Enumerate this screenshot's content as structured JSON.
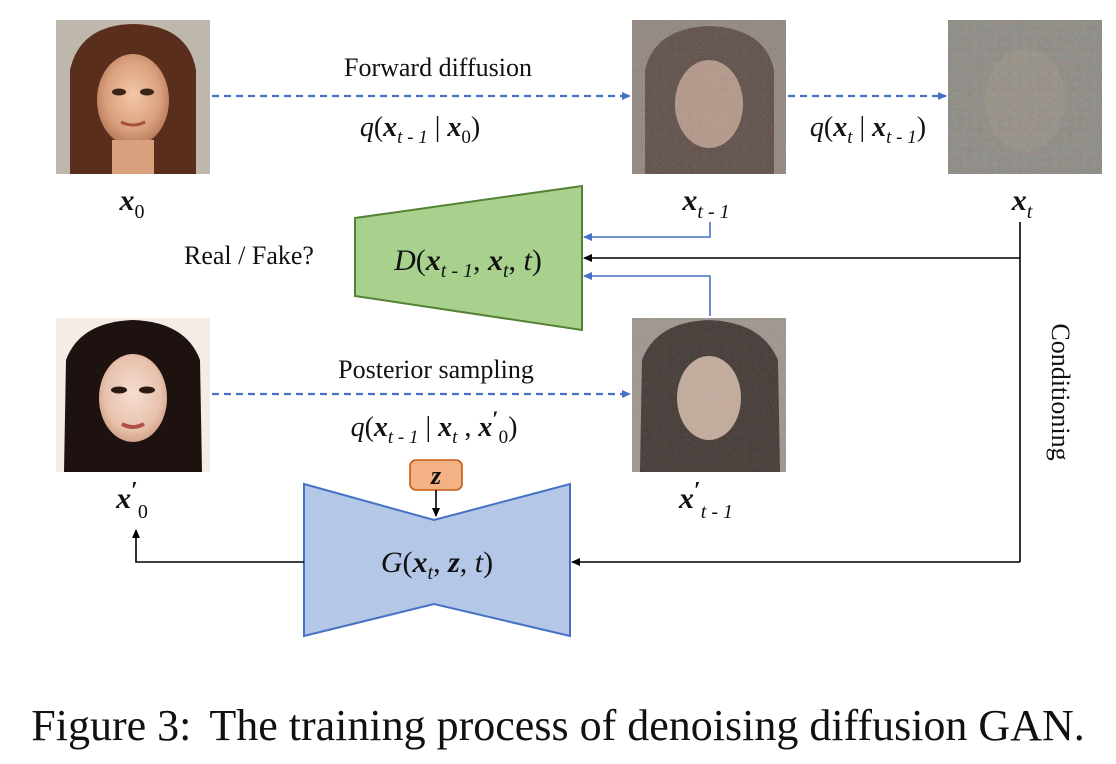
{
  "labels": {
    "forward_diffusion": "Forward diffusion",
    "posterior_sampling": "Posterior sampling",
    "real_fake": "Real / Fake?",
    "conditioning": "Conditioning"
  },
  "math": {
    "x": "x",
    "z": "z",
    "q": "q",
    "D": "D",
    "G": "G",
    "t": "t",
    "sub_0": "0",
    "sub_t": "t",
    "sub_t_minus_1": "t - 1",
    "prime": "′",
    "lparen": "(",
    "rparen": ")",
    "bar": "|",
    "comma": ","
  },
  "images": [
    {
      "id": "x0",
      "label": "x0",
      "desc": "clean face"
    },
    {
      "id": "xt_minus_1",
      "label": "x t-1",
      "desc": "noisy face"
    },
    {
      "id": "xt",
      "label": "x t",
      "desc": "very noisy face"
    },
    {
      "id": "x0_prime",
      "label": "x' 0",
      "desc": "generated face"
    },
    {
      "id": "xt_minus_1_prime",
      "label": "x' t-1",
      "desc": "noisy generated face"
    }
  ],
  "colors": {
    "discriminator_fill": "#a9d18e",
    "discriminator_stroke": "#548235",
    "generator_fill": "#b4c7e7",
    "generator_stroke": "#4472c4",
    "z_fill": "#f4b183",
    "z_stroke": "#c55a11",
    "dashed_arrow": "#4472c4",
    "blue_line": "#4472c4",
    "black_line": "#000000"
  },
  "caption": {
    "figure_label": "Figure 3:",
    "text": "The training process of denoising diffusion GAN."
  }
}
